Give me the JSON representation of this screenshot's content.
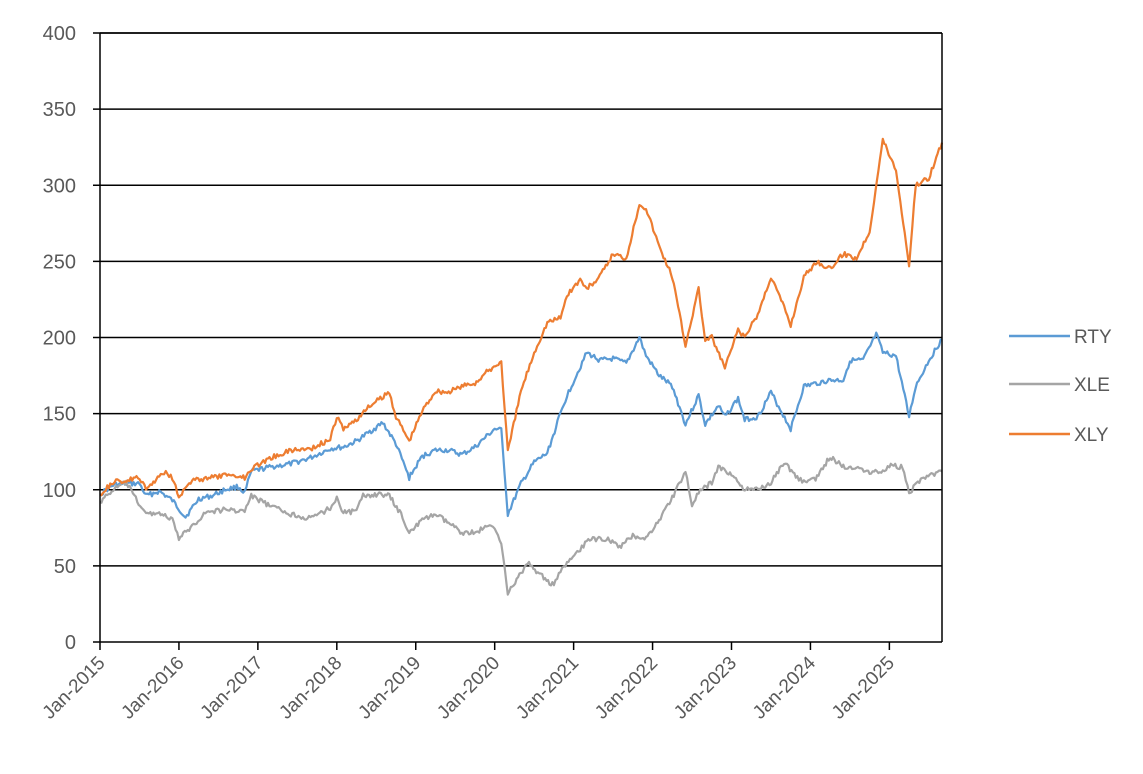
{
  "chart_data": {
    "type": "line",
    "title": "",
    "xlabel": "",
    "ylabel": "",
    "ylim": [
      0,
      400
    ],
    "yticks": [
      0,
      50,
      100,
      150,
      200,
      250,
      300,
      350,
      400
    ],
    "xlim": [
      "2015-01",
      "2025-09"
    ],
    "xtick_labels": [
      "Jan-2015",
      "Jan-2016",
      "Jan-2017",
      "Jan-2018",
      "Jan-2019",
      "Jan-2020",
      "Jan-2021",
      "Jan-2022",
      "Jan-2023",
      "Jan-2024",
      "Jan-2025"
    ],
    "grid": "horizontal",
    "legend_position": "right",
    "series": [
      {
        "name": "RTY",
        "color": "#5b9bd5",
        "points": [
          [
            "2015-01",
            97
          ],
          [
            "2015-03",
            103
          ],
          [
            "2015-05",
            104
          ],
          [
            "2015-07",
            104
          ],
          [
            "2015-08",
            96
          ],
          [
            "2015-10",
            99
          ],
          [
            "2015-12",
            93
          ],
          [
            "2016-02",
            82
          ],
          [
            "2016-04",
            94
          ],
          [
            "2016-06",
            96
          ],
          [
            "2016-08",
            100
          ],
          [
            "2016-10",
            102
          ],
          [
            "2016-11",
            98
          ],
          [
            "2016-12",
            112
          ],
          [
            "2017-03",
            115
          ],
          [
            "2017-06",
            117
          ],
          [
            "2017-09",
            121
          ],
          [
            "2017-12",
            127
          ],
          [
            "2018-02",
            128
          ],
          [
            "2018-04",
            132
          ],
          [
            "2018-06",
            138
          ],
          [
            "2018-08",
            144
          ],
          [
            "2018-10",
            130
          ],
          [
            "2018-12",
            108
          ],
          [
            "2019-02",
            122
          ],
          [
            "2019-04",
            126
          ],
          [
            "2019-06",
            126
          ],
          [
            "2019-08",
            123
          ],
          [
            "2019-10",
            128
          ],
          [
            "2019-12",
            136
          ],
          [
            "2020-01",
            140
          ],
          [
            "2020-02",
            139
          ],
          [
            "2020-03",
            84
          ],
          [
            "2020-05",
            104
          ],
          [
            "2020-07",
            118
          ],
          [
            "2020-09",
            124
          ],
          [
            "2020-11",
            150
          ],
          [
            "2020-12",
            162
          ],
          [
            "2021-03",
            190
          ],
          [
            "2021-05",
            185
          ],
          [
            "2021-07",
            186
          ],
          [
            "2021-09",
            183
          ],
          [
            "2021-11",
            200
          ],
          [
            "2021-12",
            188
          ],
          [
            "2022-02",
            175
          ],
          [
            "2022-04",
            168
          ],
          [
            "2022-06",
            143
          ],
          [
            "2022-08",
            162
          ],
          [
            "2022-09",
            143
          ],
          [
            "2022-11",
            155
          ],
          [
            "2022-12",
            148
          ],
          [
            "2023-02",
            160
          ],
          [
            "2023-03",
            146
          ],
          [
            "2023-05",
            148
          ],
          [
            "2023-07",
            164
          ],
          [
            "2023-10",
            140
          ],
          [
            "2023-12",
            168
          ],
          [
            "2024-02",
            170
          ],
          [
            "2024-04",
            172
          ],
          [
            "2024-06",
            172
          ],
          [
            "2024-07",
            185
          ],
          [
            "2024-09",
            185
          ],
          [
            "2024-11",
            202
          ],
          [
            "2024-12",
            190
          ],
          [
            "2025-02",
            188
          ],
          [
            "2025-04",
            148
          ],
          [
            "2025-05",
            168
          ],
          [
            "2025-07",
            185
          ],
          [
            "2025-09",
            199
          ]
        ]
      },
      {
        "name": "XLE",
        "color": "#a5a5a5",
        "points": [
          [
            "2015-01",
            92
          ],
          [
            "2015-03",
            100
          ],
          [
            "2015-05",
            105
          ],
          [
            "2015-06",
            97
          ],
          [
            "2015-08",
            84
          ],
          [
            "2015-10",
            85
          ],
          [
            "2015-12",
            80
          ],
          [
            "2016-01",
            68
          ],
          [
            "2016-03",
            76
          ],
          [
            "2016-05",
            85
          ],
          [
            "2016-08",
            87
          ],
          [
            "2016-11",
            86
          ],
          [
            "2016-12",
            96
          ],
          [
            "2017-03",
            89
          ],
          [
            "2017-06",
            84
          ],
          [
            "2017-09",
            81
          ],
          [
            "2017-12",
            88
          ],
          [
            "2018-01",
            95
          ],
          [
            "2018-02",
            85
          ],
          [
            "2018-04",
            86
          ],
          [
            "2018-05",
            96
          ],
          [
            "2018-07",
            97
          ],
          [
            "2018-09",
            96
          ],
          [
            "2018-11",
            82
          ],
          [
            "2018-12",
            72
          ],
          [
            "2019-02",
            80
          ],
          [
            "2019-04",
            84
          ],
          [
            "2019-06",
            78
          ],
          [
            "2019-08",
            72
          ],
          [
            "2019-10",
            72
          ],
          [
            "2019-12",
            76
          ],
          [
            "2020-01",
            75
          ],
          [
            "2020-02",
            66
          ],
          [
            "2020-03",
            32
          ],
          [
            "2020-05",
            45
          ],
          [
            "2020-06",
            52
          ],
          [
            "2020-08",
            44
          ],
          [
            "2020-10",
            37
          ],
          [
            "2020-11",
            46
          ],
          [
            "2020-12",
            52
          ],
          [
            "2021-02",
            60
          ],
          [
            "2021-03",
            67
          ],
          [
            "2021-06",
            68
          ],
          [
            "2021-08",
            62
          ],
          [
            "2021-10",
            70
          ],
          [
            "2021-12",
            68
          ],
          [
            "2022-02",
            80
          ],
          [
            "2022-04",
            95
          ],
          [
            "2022-06",
            112
          ],
          [
            "2022-07",
            90
          ],
          [
            "2022-08",
            98
          ],
          [
            "2022-10",
            105
          ],
          [
            "2022-11",
            115
          ],
          [
            "2023-01",
            110
          ],
          [
            "2023-03",
            100
          ],
          [
            "2023-05",
            100
          ],
          [
            "2023-07",
            105
          ],
          [
            "2023-09",
            118
          ],
          [
            "2023-11",
            108
          ],
          [
            "2023-12",
            105
          ],
          [
            "2024-02",
            108
          ],
          [
            "2024-04",
            122
          ],
          [
            "2024-06",
            115
          ],
          [
            "2024-08",
            115
          ],
          [
            "2024-10",
            112
          ],
          [
            "2024-12",
            112
          ],
          [
            "2025-01",
            116
          ],
          [
            "2025-03",
            115
          ],
          [
            "2025-04",
            98
          ],
          [
            "2025-06",
            108
          ],
          [
            "2025-09",
            112
          ]
        ]
      },
      {
        "name": "XLY",
        "color": "#ed7d31",
        "points": [
          [
            "2015-01",
            97
          ],
          [
            "2015-03",
            105
          ],
          [
            "2015-05",
            106
          ],
          [
            "2015-07",
            108
          ],
          [
            "2015-08",
            100
          ],
          [
            "2015-10",
            109
          ],
          [
            "2015-11",
            112
          ],
          [
            "2015-12",
            108
          ],
          [
            "2016-01",
            96
          ],
          [
            "2016-03",
            106
          ],
          [
            "2016-06",
            108
          ],
          [
            "2016-09",
            110
          ],
          [
            "2016-11",
            108
          ],
          [
            "2016-12",
            114
          ],
          [
            "2017-03",
            121
          ],
          [
            "2017-06",
            126
          ],
          [
            "2017-09",
            127
          ],
          [
            "2017-12",
            133
          ],
          [
            "2018-01",
            148
          ],
          [
            "2018-02",
            140
          ],
          [
            "2018-04",
            146
          ],
          [
            "2018-06",
            155
          ],
          [
            "2018-09",
            164
          ],
          [
            "2018-10",
            148
          ],
          [
            "2018-12",
            132
          ],
          [
            "2019-02",
            152
          ],
          [
            "2019-04",
            165
          ],
          [
            "2019-06",
            164
          ],
          [
            "2019-08",
            168
          ],
          [
            "2019-10",
            170
          ],
          [
            "2019-12",
            178
          ],
          [
            "2020-02",
            184
          ],
          [
            "2020-03",
            125
          ],
          [
            "2020-05",
            165
          ],
          [
            "2020-07",
            190
          ],
          [
            "2020-09",
            210
          ],
          [
            "2020-11",
            213
          ],
          [
            "2020-12",
            228
          ],
          [
            "2021-02",
            238
          ],
          [
            "2021-03",
            232
          ],
          [
            "2021-05",
            240
          ],
          [
            "2021-07",
            255
          ],
          [
            "2021-09",
            252
          ],
          [
            "2021-11",
            288
          ],
          [
            "2021-12",
            285
          ],
          [
            "2022-02",
            260
          ],
          [
            "2022-04",
            240
          ],
          [
            "2022-06",
            195
          ],
          [
            "2022-08",
            232
          ],
          [
            "2022-09",
            198
          ],
          [
            "2022-10",
            200
          ],
          [
            "2022-12",
            180
          ],
          [
            "2023-02",
            205
          ],
          [
            "2023-03",
            200
          ],
          [
            "2023-05",
            215
          ],
          [
            "2023-07",
            240
          ],
          [
            "2023-09",
            220
          ],
          [
            "2023-10",
            208
          ],
          [
            "2023-12",
            240
          ],
          [
            "2024-02",
            250
          ],
          [
            "2024-04",
            245
          ],
          [
            "2024-06",
            255
          ],
          [
            "2024-08",
            252
          ],
          [
            "2024-10",
            270
          ],
          [
            "2024-12",
            330
          ],
          [
            "2025-02",
            310
          ],
          [
            "2025-04",
            248
          ],
          [
            "2025-05",
            300
          ],
          [
            "2025-07",
            305
          ],
          [
            "2025-09",
            328
          ]
        ]
      }
    ]
  }
}
